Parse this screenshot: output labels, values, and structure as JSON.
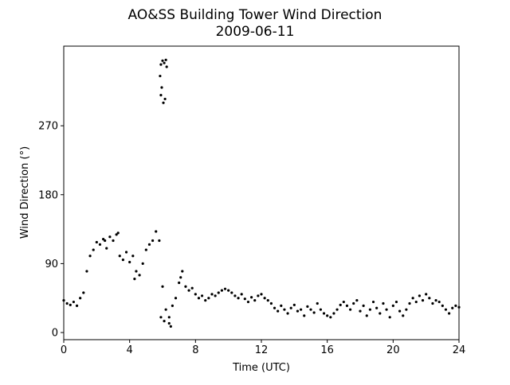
{
  "chart_data": {
    "type": "scatter",
    "title": "AO&SS Building Tower Wind Direction",
    "subtitle": "2009-06-11",
    "x_label": "Time (UTC)",
    "y_label": "Wind Direction (°)",
    "color": "#000000",
    "xlim": [
      0,
      24
    ],
    "xticks": [
      0,
      4,
      8,
      12,
      16,
      20,
      24
    ],
    "ylim": [
      -9.3,
      374
    ],
    "yticks": [
      0,
      90,
      180,
      270
    ],
    "x": [
      0,
      0.2,
      0.4,
      0.6,
      0.8,
      1,
      1.2,
      1.4,
      1.6,
      1.8,
      2,
      2.2,
      2.4,
      2.6,
      2.8,
      3,
      3.2,
      3.4,
      3.6,
      3.8,
      4,
      4.2,
      4.4,
      4.6,
      4.8,
      5,
      5.2,
      5.4,
      5.6,
      5.8,
      6,
      6.2,
      6.4,
      6.6,
      6.8,
      7,
      7.2,
      7.4,
      7.6,
      7.8,
      8,
      8.2,
      8.4,
      8.6,
      8.8,
      9,
      9.2,
      9.4,
      9.6,
      9.8,
      10,
      10.2,
      10.4,
      10.6,
      10.8,
      11,
      11.2,
      11.4,
      11.6,
      11.8,
      12,
      12.2,
      12.4,
      12.6,
      12.8,
      13,
      13.2,
      13.4,
      13.6,
      13.8,
      14,
      14.2,
      14.4,
      14.6,
      14.8,
      15,
      15.2,
      15.4,
      15.6,
      15.8,
      16,
      16.2,
      16.4,
      16.6,
      16.8,
      17,
      17.2,
      17.4,
      17.6,
      17.8,
      18,
      18.2,
      18.4,
      18.6,
      18.8,
      19,
      19.2,
      19.4,
      19.6,
      19.8,
      20,
      20.2,
      20.4,
      20.6,
      20.8,
      21,
      21.2,
      21.4,
      21.6,
      21.8,
      22,
      22.2,
      22.4,
      22.6,
      22.8,
      23,
      23.2,
      23.4,
      23.6,
      23.8,
      24,
      5.9,
      6,
      6.1,
      6.2,
      5.85,
      5.95,
      6.05,
      6.15,
      5.9,
      6.25,
      6.5,
      6.4,
      5.9,
      6.1,
      2.5,
      3.3,
      4.3,
      7.1
    ],
    "values": [
      42,
      38,
      36,
      40,
      35,
      45,
      52,
      80,
      100,
      108,
      118,
      115,
      122,
      110,
      125,
      120,
      128,
      100,
      95,
      105,
      92,
      100,
      80,
      75,
      90,
      108,
      115,
      120,
      132,
      120,
      60,
      30,
      20,
      35,
      45,
      65,
      80,
      60,
      55,
      58,
      50,
      45,
      48,
      42,
      45,
      50,
      48,
      52,
      55,
      57,
      55,
      52,
      48,
      45,
      50,
      44,
      40,
      46,
      42,
      48,
      50,
      45,
      42,
      38,
      32,
      28,
      35,
      30,
      25,
      32,
      36,
      28,
      30,
      22,
      34,
      30,
      26,
      38,
      30,
      25,
      22,
      20,
      25,
      30,
      36,
      40,
      35,
      30,
      38,
      42,
      28,
      35,
      22,
      30,
      40,
      32,
      25,
      38,
      30,
      20,
      35,
      40,
      28,
      22,
      30,
      38,
      45,
      40,
      48,
      42,
      50,
      45,
      38,
      42,
      40,
      35,
      30,
      25,
      32,
      35,
      33,
      350,
      355,
      352,
      356,
      335,
      320,
      300,
      305,
      310,
      347,
      8,
      12,
      20,
      15,
      120,
      130,
      70,
      72
    ]
  }
}
